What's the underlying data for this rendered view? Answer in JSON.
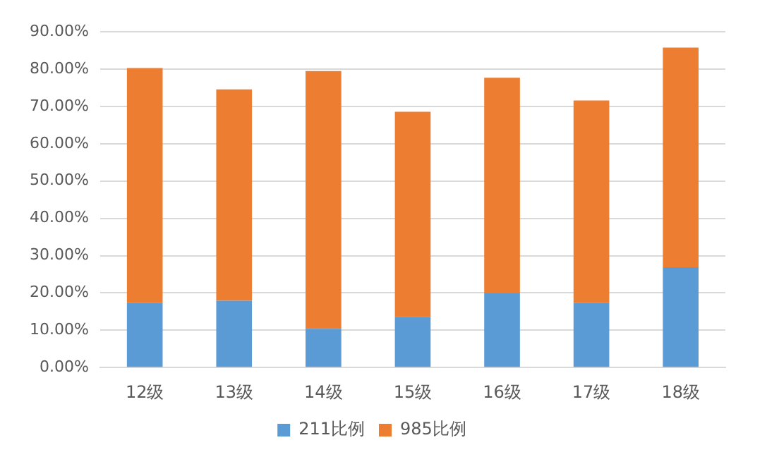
{
  "chart_data": {
    "type": "bar",
    "stacked": true,
    "categories": [
      "12级",
      "13级",
      "14级",
      "15级",
      "16级",
      "17级",
      "18级"
    ],
    "series": [
      {
        "name": "211比例",
        "color": "#5b9bd5",
        "values": [
          17.4,
          17.9,
          10.4,
          13.6,
          19.9,
          17.4,
          26.9
        ]
      },
      {
        "name": "985比例",
        "color": "#ed7d31",
        "values": [
          62.9,
          56.7,
          69.1,
          55.0,
          57.8,
          54.2,
          58.9
        ]
      }
    ],
    "ylim": [
      0,
      90
    ],
    "yticks": [
      {
        "value": 0,
        "label": "0.00%"
      },
      {
        "value": 10,
        "label": "10.00%"
      },
      {
        "value": 20,
        "label": "20.00%"
      },
      {
        "value": 30,
        "label": "30.00%"
      },
      {
        "value": 40,
        "label": "40.00%"
      },
      {
        "value": 50,
        "label": "50.00%"
      },
      {
        "value": 60,
        "label": "60.00%"
      },
      {
        "value": 70,
        "label": "70.00%"
      },
      {
        "value": 80,
        "label": "80.00%"
      },
      {
        "value": 90,
        "label": "90.00%"
      }
    ],
    "grid": "y",
    "legend": "bottom"
  }
}
